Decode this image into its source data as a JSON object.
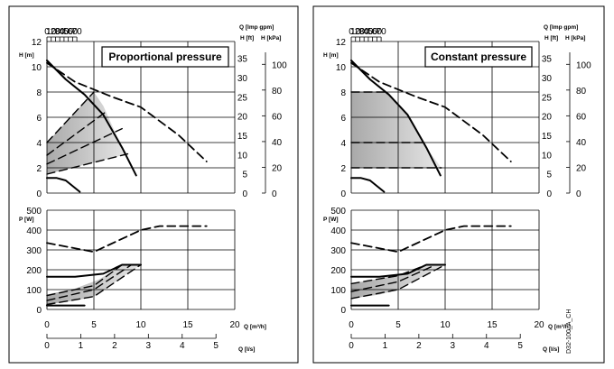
{
  "figure_code": "D32-100_A_CH",
  "chart_data": [
    {
      "type": "line",
      "title": "Proportional pressure",
      "axes": {
        "q_m3h": {
          "label": "Q [m³/h]",
          "ticks": [
            "0",
            "5",
            "10",
            "15",
            "20"
          ],
          "range": [
            0,
            20
          ]
        },
        "q_ls": {
          "label": "Q [l/s]",
          "ticks": [
            "0",
            "1",
            "2",
            "3",
            "4",
            "5"
          ]
        },
        "q_impgpm": {
          "label": "Q [Imp gpm]",
          "ticks": [
            "0",
            "10",
            "20",
            "30",
            "40",
            "50",
            "60",
            "70"
          ]
        },
        "h_m": {
          "label": "H [m]",
          "ticks": [
            "0",
            "2",
            "4",
            "6",
            "8",
            "10",
            "12"
          ],
          "range": [
            0,
            12
          ]
        },
        "h_ft": {
          "label": "H [ft]",
          "ticks": [
            "0",
            "5",
            "10",
            "15",
            "20",
            "25",
            "30",
            "35"
          ]
        },
        "h_kpa": {
          "label": "H [kPa]",
          "ticks": [
            "0",
            "20",
            "40",
            "60",
            "80",
            "100"
          ]
        },
        "p_w": {
          "label": "P [W]",
          "ticks": [
            "0",
            "100",
            "200",
            "300",
            "400",
            "500"
          ],
          "range": [
            0,
            500
          ]
        }
      },
      "head_series": [
        {
          "role": "max-curve",
          "x": [
            0,
            2,
            4,
            6,
            8,
            9.5
          ],
          "y": [
            10.5,
            9,
            7.8,
            6.2,
            3.6,
            1.4
          ]
        },
        {
          "role": "min-curve",
          "x": [
            0,
            1,
            2,
            3.5
          ],
          "y": [
            1.2,
            1.2,
            1.0,
            0.1
          ]
        },
        {
          "role": "max-curve-dashed",
          "x": [
            0,
            3,
            7,
            10,
            14,
            17
          ],
          "y": [
            10.3,
            8.8,
            7.6,
            6.8,
            4.6,
            2.5
          ]
        },
        {
          "role": "upper-control-line",
          "x": [
            0,
            5
          ],
          "y": [
            4,
            8
          ]
        },
        {
          "role": "mid-control-line-1",
          "x": [
            0,
            6.4
          ],
          "y": [
            3,
            6.5
          ]
        },
        {
          "role": "mid-control-line-2",
          "x": [
            0,
            8
          ],
          "y": [
            2.3,
            5.1
          ]
        },
        {
          "role": "lower-control-line",
          "x": [
            0,
            8.6
          ],
          "y": [
            1.5,
            3.1
          ]
        }
      ],
      "power_series": [
        {
          "role": "max-power",
          "x": [
            0,
            3,
            6,
            8,
            10
          ],
          "y": [
            165,
            165,
            180,
            225,
            225
          ]
        },
        {
          "role": "power-dashed",
          "x": [
            0,
            5,
            10,
            12,
            17
          ],
          "y": [
            335,
            290,
            400,
            420,
            420
          ]
        },
        {
          "role": "min-power",
          "x": [
            0,
            4
          ],
          "y": [
            20,
            20
          ]
        },
        {
          "role": "control-power-1",
          "x": [
            0,
            5,
            8
          ],
          "y": [
            70,
            120,
            225
          ]
        },
        {
          "role": "control-power-2",
          "x": [
            0,
            5,
            9
          ],
          "y": [
            45,
            100,
            225
          ]
        },
        {
          "role": "control-power-3",
          "x": [
            0,
            5,
            10
          ],
          "y": [
            25,
            65,
            225
          ]
        }
      ],
      "shaded_area": "proportional-band",
      "grid": true
    },
    {
      "type": "line",
      "title": "Constant pressure",
      "axes": {
        "q_m3h": {
          "label": "Q [m³/h]",
          "ticks": [
            "0",
            "5",
            "10",
            "15",
            "20"
          ],
          "range": [
            0,
            20
          ]
        },
        "q_ls": {
          "label": "Q [l/s]",
          "ticks": [
            "0",
            "1",
            "2",
            "3",
            "4",
            "5"
          ]
        },
        "q_impgpm": {
          "label": "Q [Imp gpm]",
          "ticks": [
            "0",
            "10",
            "20",
            "30",
            "40",
            "50",
            "60",
            "70"
          ]
        },
        "h_m": {
          "label": "H [m]",
          "ticks": [
            "0",
            "2",
            "4",
            "6",
            "8",
            "10",
            "12"
          ],
          "range": [
            0,
            12
          ]
        },
        "h_ft": {
          "label": "H [ft]",
          "ticks": [
            "0",
            "5",
            "10",
            "15",
            "20",
            "25",
            "30",
            "35"
          ]
        },
        "h_kpa": {
          "label": "H [kPa]",
          "ticks": [
            "0",
            "20",
            "40",
            "60",
            "80",
            "100"
          ]
        },
        "p_w": {
          "label": "P [W]",
          "ticks": [
            "0",
            "100",
            "200",
            "300",
            "400",
            "500"
          ],
          "range": [
            0,
            500
          ]
        }
      },
      "head_series": [
        {
          "role": "max-curve",
          "x": [
            0,
            2,
            4,
            6,
            8,
            9.5
          ],
          "y": [
            10.5,
            9,
            7.8,
            6.2,
            3.6,
            1.4
          ]
        },
        {
          "role": "min-curve",
          "x": [
            0,
            1,
            2,
            3.5
          ],
          "y": [
            1.2,
            1.2,
            1.0,
            0.1
          ]
        },
        {
          "role": "max-curve-dashed",
          "x": [
            0,
            3,
            7,
            10,
            14,
            17
          ],
          "y": [
            10.3,
            8.8,
            7.6,
            6.8,
            4.6,
            2.5
          ]
        },
        {
          "role": "upper-control-line",
          "x": [
            0,
            3.9
          ],
          "y": [
            8,
            8
          ]
        },
        {
          "role": "mid-control-line",
          "x": [
            0,
            8
          ],
          "y": [
            4,
            4
          ]
        },
        {
          "role": "lower-control-line",
          "x": [
            0,
            9.6
          ],
          "y": [
            2,
            2
          ]
        }
      ],
      "power_series": [
        {
          "role": "max-power",
          "x": [
            0,
            3,
            6,
            8,
            10
          ],
          "y": [
            165,
            165,
            180,
            225,
            225
          ]
        },
        {
          "role": "power-dashed",
          "x": [
            0,
            5,
            10,
            12,
            17
          ],
          "y": [
            335,
            290,
            400,
            420,
            420
          ]
        },
        {
          "role": "min-power",
          "x": [
            0,
            4
          ],
          "y": [
            20,
            20
          ]
        },
        {
          "role": "control-power-1",
          "x": [
            0,
            5,
            8
          ],
          "y": [
            130,
            170,
            225
          ]
        },
        {
          "role": "control-power-2",
          "x": [
            0,
            5,
            9
          ],
          "y": [
            90,
            140,
            225
          ]
        },
        {
          "role": "control-power-3",
          "x": [
            0,
            5,
            10
          ],
          "y": [
            55,
            100,
            225
          ]
        }
      ],
      "shaded_area": "constant-band",
      "grid": true
    }
  ]
}
